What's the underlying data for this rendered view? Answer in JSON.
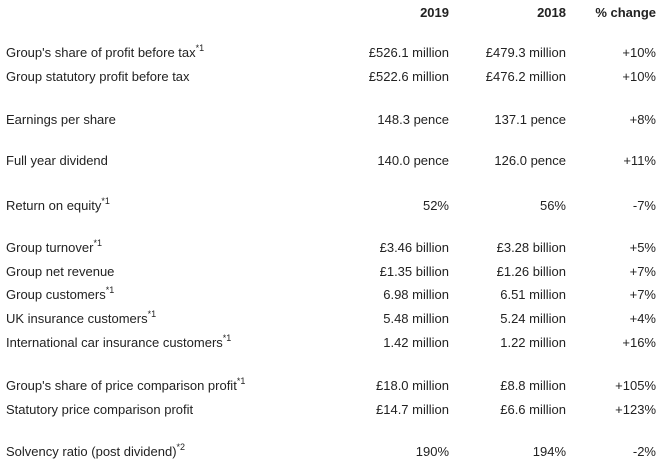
{
  "header": {
    "col_2019": "2019",
    "col_2018": "2018",
    "col_change": "% change"
  },
  "rows": [
    {
      "label": "Group's share of profit before tax",
      "note": "*1",
      "v2019": "£526.1 million",
      "v2018": "£479.3 million",
      "change": "+10%"
    },
    {
      "label": "Group statutory profit before tax",
      "note": "",
      "v2019": "£522.6 million",
      "v2018": "£476.2 million",
      "change": "+10%"
    },
    {
      "label": "Earnings per share",
      "note": "",
      "v2019": "148.3 pence",
      "v2018": "137.1 pence",
      "change": "+8%"
    },
    {
      "label": "Full year dividend",
      "note": "",
      "v2019": "140.0 pence",
      "v2018": "126.0 pence",
      "change": "+11%"
    },
    {
      "label": "Return on equity",
      "note": "*1",
      "v2019": "52%",
      "v2018": "56%",
      "change": "-7%"
    },
    {
      "label": "Group turnover",
      "note": "*1",
      "v2019": "£3.46 billion",
      "v2018": "£3.28 billion",
      "change": "+5%"
    },
    {
      "label": "Group net revenue",
      "note": "",
      "v2019": "£1.35 billion",
      "v2018": "£1.26 billion",
      "change": "+7%"
    },
    {
      "label": "Group customers",
      "note": "*1",
      "v2019": "6.98 million",
      "v2018": "6.51 million",
      "change": "+7%"
    },
    {
      "label": "UK insurance customers",
      "note": "*1",
      "v2019": "5.48 million",
      "v2018": "5.24 million",
      "change": "+4%"
    },
    {
      "label": "International car insurance customers",
      "note": "*1",
      "v2019": "1.42 million",
      "v2018": "1.22 million",
      "change": "+16%"
    },
    {
      "label": "Group's share of price comparison profit",
      "note": "*1",
      "v2019": "£18.0 million",
      "v2018": "£8.8 million",
      "change": "+105%"
    },
    {
      "label": "Statutory price comparison profit",
      "note": "",
      "v2019": "£14.7 million",
      "v2018": "£6.6 million",
      "change": "+123%"
    },
    {
      "label": "Solvency ratio (post dividend)",
      "note": "*2",
      "v2019": "190%",
      "v2018": "194%",
      "change": "-2%"
    }
  ]
}
